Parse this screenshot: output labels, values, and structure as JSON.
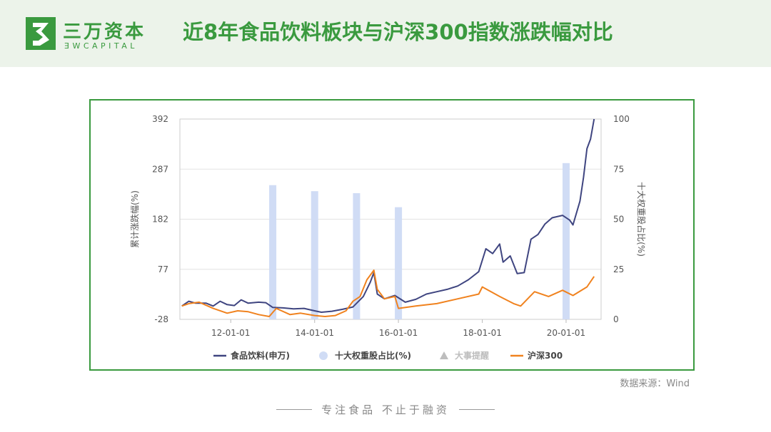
{
  "header": {
    "logo_name": "三万资本",
    "logo_sub": "ƎWCAPITAL",
    "title": "近8年食品饮料板块与沪深300指数涨跌幅对比"
  },
  "source": "数据来源：Wind",
  "footer": "专注食品 不止于融资",
  "colors": {
    "brand": "#3a9a3f",
    "header_bg": "#ecf3ea",
    "food": "#3f4580",
    "hs300": "#f0821e",
    "weight": "#d0dcf5",
    "events": "#bdbdbd"
  },
  "chart_data": {
    "type": "line",
    "ylabel_left": "累计涨跌幅(%)",
    "ylabel_right": "十大权重股占比(%)",
    "y_left_range": [
      -28,
      392
    ],
    "y_left_ticks": [
      "392",
      "287",
      "182",
      "77",
      "-28"
    ],
    "y_right_range": [
      0,
      100
    ],
    "y_right_ticks": [
      "100",
      "75",
      "50",
      "25",
      "0"
    ],
    "x_ticks": [
      "12-01-01",
      "14-01-01",
      "16-01-01",
      "18-01-01",
      "20-01-01"
    ],
    "legend": [
      {
        "name": "食品饮料(申万)",
        "marker": "line",
        "color": "#3f4580"
      },
      {
        "name": "十大权重股占比(%)",
        "marker": "circle",
        "color": "#d0dcf5"
      },
      {
        "name": "大事提醒",
        "marker": "triangle",
        "color": "#bdbdbd"
      },
      {
        "name": "沪深300",
        "marker": "line",
        "color": "#f0821e"
      }
    ],
    "series": [
      {
        "name": "食品饮料(申万)",
        "axis": "left",
        "color": "#3f4580",
        "points": [
          [
            "10-11-01",
            0
          ],
          [
            "11-01-01",
            10
          ],
          [
            "11-03-01",
            6
          ],
          [
            "11-06-01",
            6
          ],
          [
            "11-08-01",
            0
          ],
          [
            "11-10-01",
            10
          ],
          [
            "11-12-01",
            3
          ],
          [
            "12-02-01",
            1
          ],
          [
            "12-04-01",
            13
          ],
          [
            "12-06-01",
            6
          ],
          [
            "12-09-01",
            8
          ],
          [
            "12-11-01",
            7
          ],
          [
            "13-01-01",
            -3
          ],
          [
            "13-04-01",
            -4
          ],
          [
            "13-07-01",
            -6
          ],
          [
            "13-10-01",
            -5
          ],
          [
            "14-01-01",
            -10
          ],
          [
            "14-03-01",
            -13
          ],
          [
            "14-06-01",
            -11
          ],
          [
            "14-09-01",
            -7
          ],
          [
            "14-12-01",
            -2
          ],
          [
            "15-03-01",
            20
          ],
          [
            "15-05-01",
            50
          ],
          [
            "15-06-01",
            70
          ],
          [
            "15-07-01",
            25
          ],
          [
            "15-09-01",
            15
          ],
          [
            "15-12-01",
            22
          ],
          [
            "16-03-01",
            8
          ],
          [
            "16-06-01",
            14
          ],
          [
            "16-09-01",
            25
          ],
          [
            "16-12-01",
            30
          ],
          [
            "17-03-01",
            35
          ],
          [
            "17-06-01",
            42
          ],
          [
            "17-09-01",
            55
          ],
          [
            "17-12-01",
            72
          ],
          [
            "18-02-01",
            120
          ],
          [
            "18-04-01",
            110
          ],
          [
            "18-06-01",
            130
          ],
          [
            "18-07-01",
            92
          ],
          [
            "18-09-01",
            105
          ],
          [
            "18-11-01",
            68
          ],
          [
            "19-01-01",
            70
          ],
          [
            "19-03-01",
            140
          ],
          [
            "19-05-01",
            150
          ],
          [
            "19-07-01",
            172
          ],
          [
            "19-09-01",
            185
          ],
          [
            "19-12-01",
            190
          ],
          [
            "20-02-01",
            180
          ],
          [
            "20-03-01",
            170
          ],
          [
            "20-05-01",
            220
          ],
          [
            "20-06-01",
            270
          ],
          [
            "20-07-01",
            330
          ],
          [
            "20-08-01",
            350
          ],
          [
            "20-09-01",
            392
          ]
        ]
      },
      {
        "name": "沪深300",
        "axis": "left",
        "color": "#f0821e",
        "points": [
          [
            "10-11-01",
            0
          ],
          [
            "11-01-01",
            5
          ],
          [
            "11-04-01",
            8
          ],
          [
            "11-08-01",
            -5
          ],
          [
            "11-12-01",
            -15
          ],
          [
            "12-03-01",
            -10
          ],
          [
            "12-06-01",
            -12
          ],
          [
            "12-09-01",
            -18
          ],
          [
            "12-12-01",
            -22
          ],
          [
            "13-02-01",
            -5
          ],
          [
            "13-06-01",
            -18
          ],
          [
            "13-09-01",
            -15
          ],
          [
            "14-01-01",
            -20
          ],
          [
            "14-04-01",
            -22
          ],
          [
            "14-07-01",
            -20
          ],
          [
            "14-10-01",
            -10
          ],
          [
            "14-12-01",
            10
          ],
          [
            "15-02-01",
            20
          ],
          [
            "15-04-01",
            55
          ],
          [
            "15-06-01",
            75
          ],
          [
            "15-07-01",
            35
          ],
          [
            "15-09-01",
            15
          ],
          [
            "15-12-01",
            20
          ],
          [
            "16-01-01",
            -5
          ],
          [
            "16-06-01",
            0
          ],
          [
            "16-12-01",
            5
          ],
          [
            "17-06-01",
            15
          ],
          [
            "17-12-01",
            25
          ],
          [
            "18-01-01",
            40
          ],
          [
            "18-06-01",
            20
          ],
          [
            "18-10-01",
            5
          ],
          [
            "18-12-01",
            0
          ],
          [
            "19-04-01",
            30
          ],
          [
            "19-08-01",
            20
          ],
          [
            "19-12-01",
            33
          ],
          [
            "20-03-01",
            22
          ],
          [
            "20-07-01",
            40
          ],
          [
            "20-09-01",
            62
          ]
        ]
      }
    ],
    "weight_bars": {
      "name": "十大权重股占比(%)",
      "axis": "right",
      "color": "#d0dcf5",
      "points": [
        [
          "13-01-01",
          67
        ],
        [
          "14-01-01",
          64
        ],
        [
          "15-01-01",
          63
        ],
        [
          "16-01-01",
          56
        ],
        [
          "20-01-01",
          78
        ]
      ]
    }
  }
}
